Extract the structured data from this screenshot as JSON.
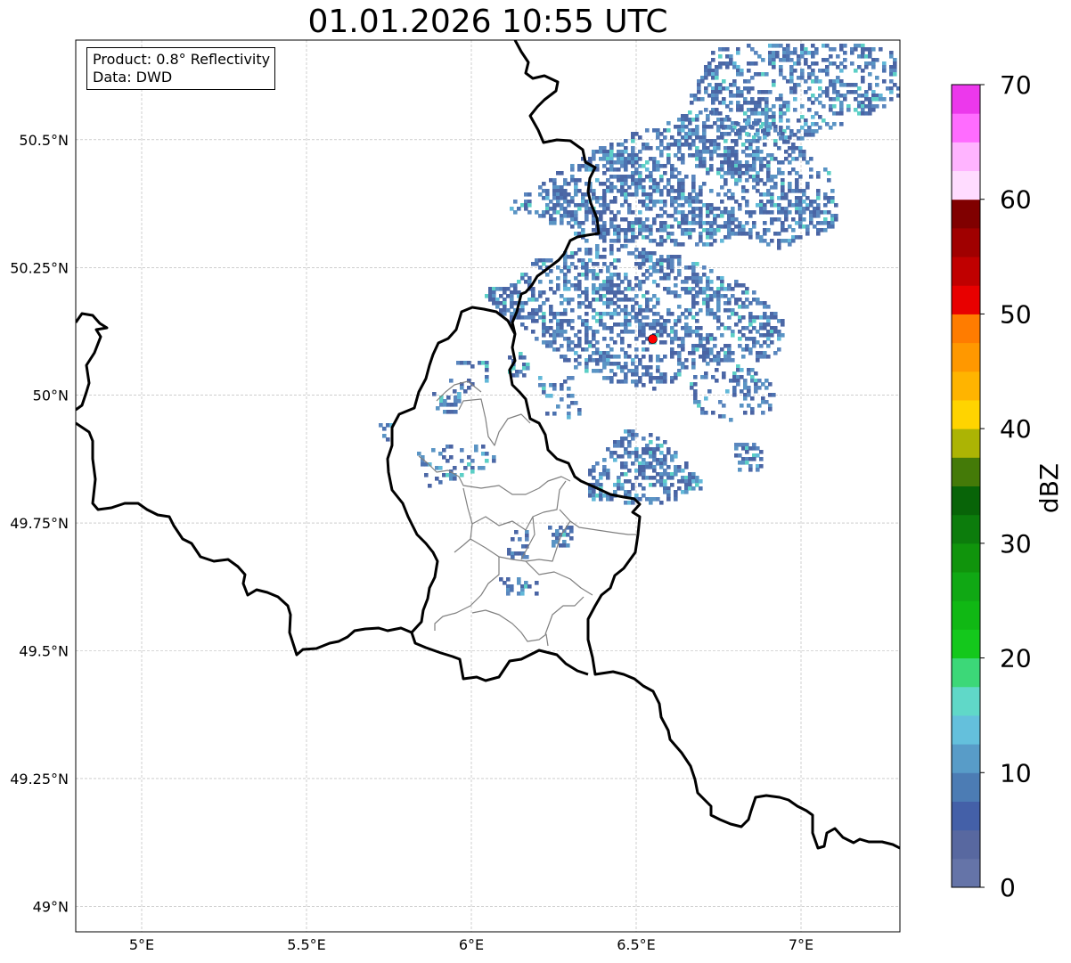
{
  "title": "01.01.2026 10:55 UTC",
  "info": {
    "product": "Product: 0.8° Reflectivity",
    "data_source": "Data: DWD"
  },
  "map": {
    "lon_range": [
      4.8,
      7.3
    ],
    "lat_range": [
      48.95,
      50.695
    ],
    "gridlines": true,
    "x_ticks": [
      {
        "value": 5.0,
        "label": "5°E"
      },
      {
        "value": 5.5,
        "label": "5.5°E"
      },
      {
        "value": 6.0,
        "label": "6°E"
      },
      {
        "value": 6.5,
        "label": "6.5°E"
      },
      {
        "value": 7.0,
        "label": "7°E"
      }
    ],
    "y_ticks": [
      {
        "value": 49.0,
        "label": "49°N"
      },
      {
        "value": 49.25,
        "label": "49.25°N"
      },
      {
        "value": 49.5,
        "label": "49.5°N"
      },
      {
        "value": 49.75,
        "label": "49.75°N"
      },
      {
        "value": 50.0,
        "label": "50°N"
      },
      {
        "value": 50.25,
        "label": "50.25°N"
      },
      {
        "value": 50.5,
        "label": "50.5°N"
      }
    ],
    "radar_site": {
      "lon": 6.55,
      "lat": 50.11,
      "color": "#ff0000"
    }
  },
  "colorbar": {
    "label": "dBZ",
    "min": 0,
    "max": 70,
    "step": 2.5,
    "ticks": [
      0,
      10,
      20,
      30,
      40,
      50,
      60,
      70
    ],
    "colors": [
      "#6574a8",
      "#5868a0",
      "#4460a8",
      "#4c7cb4",
      "#589cc8",
      "#64c0dc",
      "#60d8c8",
      "#3cd878",
      "#14c81c",
      "#10b814",
      "#10a814",
      "#10940c",
      "#0c7c0c",
      "#086408",
      "#447a08",
      "#acb404",
      "#ffd400",
      "#ffb400",
      "#ff9800",
      "#ff7c00",
      "#e80000",
      "#c00000",
      "#a00000",
      "#800000",
      "#ffdcff",
      "#ffb4ff",
      "#ff6cff",
      "#ec38ec"
    ]
  }
}
